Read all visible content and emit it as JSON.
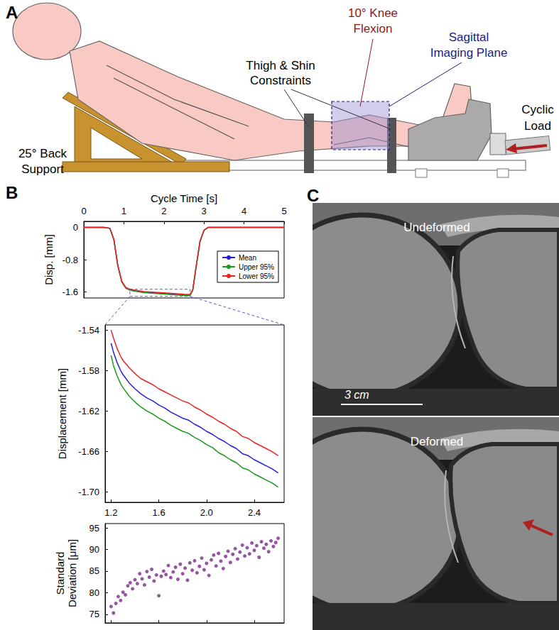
{
  "panel_labels": [
    "A",
    "B",
    "C"
  ],
  "diagram": {
    "back_support": [
      "25° Back",
      "Support"
    ],
    "constraints": [
      "Thigh & Shin",
      "Constraints"
    ],
    "knee": [
      "10° Knee",
      "Flexion"
    ],
    "imaging_plane": [
      "Sagittal",
      "Imaging Plane"
    ],
    "load": [
      "Cyclic",
      "Load"
    ]
  },
  "chart_data": [
    {
      "type": "line",
      "x_label": "Cycle Time [s]",
      "y_label": "Disp. [mm]",
      "x": [
        0,
        0.5,
        0.65,
        0.75,
        0.85,
        0.95,
        1.05,
        1.15,
        1.25,
        1.5,
        2.0,
        2.5,
        2.65,
        2.72,
        2.8,
        2.9,
        3.0,
        3.1,
        3.5,
        4.0,
        4.5,
        5.0
      ],
      "series": [
        {
          "name": "Mean",
          "color": "#2222dd",
          "values": [
            0,
            0,
            -0.02,
            -0.3,
            -0.95,
            -1.35,
            -1.5,
            -1.545,
            -1.565,
            -1.607,
            -1.64,
            -1.674,
            -1.681,
            -1.55,
            -1.0,
            -0.35,
            -0.07,
            0,
            0,
            0,
            0,
            0
          ]
        },
        {
          "name": "Upper 95%",
          "color": "#1a9a1a",
          "values": [
            0,
            0,
            -0.02,
            -0.3,
            -0.96,
            -1.36,
            -1.51,
            -1.557,
            -1.578,
            -1.62,
            -1.653,
            -1.688,
            -1.695,
            -1.56,
            -1.01,
            -0.36,
            -0.07,
            0,
            0,
            0,
            0,
            0
          ]
        },
        {
          "name": "Lower 95%",
          "color": "#ee2222",
          "values": [
            0,
            0,
            -0.02,
            -0.3,
            -0.95,
            -1.34,
            -1.49,
            -1.532,
            -1.552,
            -1.591,
            -1.623,
            -1.657,
            -1.664,
            -1.54,
            -0.99,
            -0.34,
            -0.07,
            0,
            0,
            0,
            0,
            0
          ]
        }
      ],
      "xlim": [
        0,
        5
      ],
      "xticks": [
        0,
        1,
        2,
        3,
        4,
        5
      ],
      "ylim": [
        -1.75,
        0.15
      ],
      "yticks": [
        0,
        -0.8,
        -1.6
      ],
      "legend": "lower right",
      "grid": false
    },
    {
      "type": "line",
      "y_label": "Displacement [mm]",
      "x": [
        1.2,
        1.22,
        1.25,
        1.28,
        1.3,
        1.35,
        1.4,
        1.45,
        1.5,
        1.55,
        1.6,
        1.65,
        1.7,
        1.75,
        1.8,
        1.85,
        1.9,
        1.95,
        2.0,
        2.05,
        2.1,
        2.15,
        2.2,
        2.25,
        2.3,
        2.35,
        2.4,
        2.45,
        2.5,
        2.55,
        2.6
      ],
      "series": [
        {
          "name": "Mean",
          "color": "#2222dd",
          "values": [
            -1.553,
            -1.562,
            -1.572,
            -1.58,
            -1.584,
            -1.592,
            -1.598,
            -1.603,
            -1.607,
            -1.61,
            -1.614,
            -1.617,
            -1.621,
            -1.624,
            -1.627,
            -1.629,
            -1.633,
            -1.636,
            -1.64,
            -1.643,
            -1.647,
            -1.65,
            -1.654,
            -1.657,
            -1.662,
            -1.664,
            -1.668,
            -1.671,
            -1.674,
            -1.677,
            -1.681
          ]
        },
        {
          "name": "Upper 95%",
          "color": "#1a9a1a",
          "values": [
            -1.565,
            -1.575,
            -1.585,
            -1.593,
            -1.597,
            -1.605,
            -1.611,
            -1.616,
            -1.62,
            -1.623,
            -1.627,
            -1.63,
            -1.634,
            -1.637,
            -1.64,
            -1.642,
            -1.646,
            -1.649,
            -1.653,
            -1.656,
            -1.661,
            -1.664,
            -1.668,
            -1.671,
            -1.676,
            -1.678,
            -1.682,
            -1.685,
            -1.688,
            -1.691,
            -1.695
          ]
        },
        {
          "name": "Lower 95%",
          "color": "#ee2222",
          "values": [
            -1.54,
            -1.548,
            -1.558,
            -1.566,
            -1.57,
            -1.577,
            -1.583,
            -1.588,
            -1.591,
            -1.594,
            -1.598,
            -1.601,
            -1.604,
            -1.607,
            -1.61,
            -1.612,
            -1.616,
            -1.619,
            -1.623,
            -1.626,
            -1.63,
            -1.633,
            -1.637,
            -1.64,
            -1.645,
            -1.647,
            -1.651,
            -1.654,
            -1.657,
            -1.66,
            -1.664
          ]
        }
      ],
      "xlim": [
        1.15,
        2.65
      ],
      "xticks": [
        1.2,
        1.6,
        {
          "value": 2,
          "label": "2.0"
        },
        2.4
      ],
      "ylim": [
        -1.71,
        -1.535
      ],
      "yticks": [
        -1.54,
        -1.58,
        -1.62,
        -1.66,
        {
          "value": -1.7,
          "label": "-1.70"
        }
      ],
      "grid": false
    },
    {
      "type": "scatter",
      "y_label": [
        "Standard",
        "Deviation [μm]"
      ],
      "color": "#7b2a8a",
      "marker": "circle",
      "x": [
        1.2,
        1.22,
        1.24,
        1.26,
        1.28,
        1.3,
        1.32,
        1.34,
        1.36,
        1.38,
        1.4,
        1.42,
        1.44,
        1.46,
        1.48,
        1.5,
        1.52,
        1.54,
        1.56,
        1.58,
        1.6,
        1.62,
        1.64,
        1.66,
        1.68,
        1.7,
        1.72,
        1.74,
        1.76,
        1.78,
        1.8,
        1.82,
        1.84,
        1.86,
        1.88,
        1.9,
        1.92,
        1.94,
        1.96,
        1.98,
        2.0,
        2.02,
        2.04,
        2.06,
        2.08,
        2.1,
        2.12,
        2.14,
        2.16,
        2.18,
        2.2,
        2.22,
        2.24,
        2.26,
        2.28,
        2.3,
        2.32,
        2.34,
        2.36,
        2.38,
        2.4,
        2.42,
        2.44,
        2.46,
        2.48,
        2.5,
        2.52,
        2.54,
        2.56,
        2.58,
        2.6
      ],
      "values": [
        76.8,
        75.3,
        77.5,
        79.1,
        78.2,
        80.1,
        79.5,
        81.6,
        82.3,
        80.9,
        83.0,
        82.1,
        84.4,
        83.2,
        81.8,
        84.9,
        83.6,
        85.4,
        82.7,
        84.1,
        79.3,
        83.8,
        85.0,
        84.2,
        86.3,
        83.5,
        84.8,
        85.9,
        83.1,
        86.6,
        84.4,
        85.7,
        82.9,
        86.9,
        85.2,
        87.4,
        84.6,
        86.1,
        88.0,
        85.3,
        86.8,
        84.0,
        87.6,
        88.7,
        86.2,
        89.1,
        87.3,
        85.6,
        88.4,
        89.6,
        87.0,
        88.9,
        90.2,
        87.8,
        89.4,
        91.0,
        88.5,
        90.4,
        89.0,
        91.5,
        89.8,
        90.9,
        88.2,
        91.8,
        90.3,
        91.2,
        89.5,
        92.0,
        90.7,
        91.6,
        92.6
      ],
      "xlim": [
        1.15,
        2.65
      ],
      "xticks": [
        1.2,
        1.6,
        2,
        2.4
      ],
      "ylim": [
        73,
        96
      ],
      "yticks": [
        75,
        80,
        85,
        90,
        95
      ],
      "tick_labels": "y",
      "grid": false
    }
  ],
  "images": {
    "top_label": "Undeformed",
    "bottom_label": "Deformed",
    "scale_bar": "3 cm"
  }
}
